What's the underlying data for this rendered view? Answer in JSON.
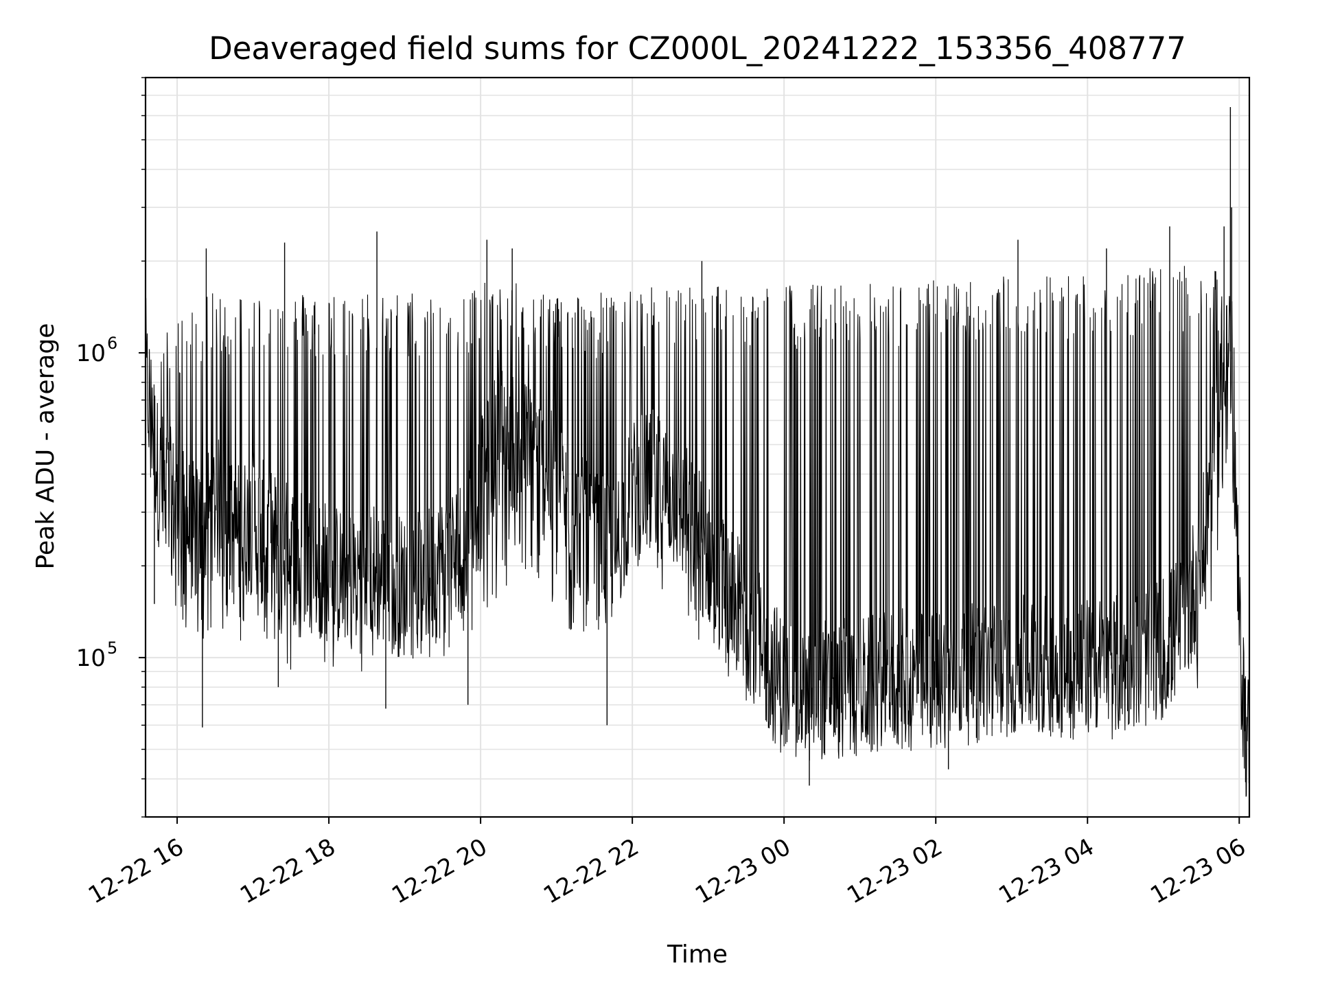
{
  "chart_data": {
    "type": "line",
    "title": "Deaveraged field sums for CZ000L_20241222_153356_408777",
    "xlabel": "Time",
    "ylabel": "Peak ADU - average",
    "x_type": "datetime",
    "xlim": [
      "2024-12-22T15:35",
      "2024-12-23T06:08"
    ],
    "ylim": [
      30000,
      8000000
    ],
    "y_scale": "log",
    "grid": true,
    "legend": "none",
    "line_color": "#000000",
    "x_ticks": [
      {
        "value": "2024-12-22T16:00",
        "label": "12-22 16"
      },
      {
        "value": "2024-12-22T18:00",
        "label": "12-22 18"
      },
      {
        "value": "2024-12-22T20:00",
        "label": "12-22 20"
      },
      {
        "value": "2024-12-22T22:00",
        "label": "12-22 22"
      },
      {
        "value": "2024-12-23T00:00",
        "label": "12-23 00"
      },
      {
        "value": "2024-12-23T02:00",
        "label": "12-23 02"
      },
      {
        "value": "2024-12-23T04:00",
        "label": "12-23 04"
      },
      {
        "value": "2024-12-23T06:00",
        "label": "12-23 06"
      }
    ],
    "y_ticks": [
      {
        "value": 100000,
        "base": "10",
        "exp": "5"
      },
      {
        "value": 1000000,
        "base": "10",
        "exp": "6"
      }
    ],
    "series": [
      {
        "points": [
          [
            "2024-12-22T15:35",
            900000
          ],
          [
            "2024-12-22T15:45",
            400000
          ],
          [
            "2024-12-22T16:00",
            300000
          ],
          [
            "2024-12-22T16:15",
            250000
          ],
          [
            "2024-12-22T16:30",
            320000
          ],
          [
            "2024-12-22T16:45",
            250000
          ],
          [
            "2024-12-22T17:00",
            280000
          ],
          [
            "2024-12-22T17:15",
            240000
          ],
          [
            "2024-12-22T17:30",
            220000
          ],
          [
            "2024-12-22T17:45",
            210000
          ],
          [
            "2024-12-22T18:00",
            190000
          ],
          [
            "2024-12-22T18:15",
            180000
          ],
          [
            "2024-12-22T18:30",
            200000
          ],
          [
            "2024-12-22T18:45",
            180000
          ],
          [
            "2024-12-22T19:00",
            170000
          ],
          [
            "2024-12-22T19:15",
            180000
          ],
          [
            "2024-12-22T19:30",
            200000
          ],
          [
            "2024-12-22T19:45",
            230000
          ],
          [
            "2024-12-22T20:00",
            350000
          ],
          [
            "2024-12-22T20:15",
            550000
          ],
          [
            "2024-12-22T20:30",
            500000
          ],
          [
            "2024-12-22T20:45",
            450000
          ],
          [
            "2024-12-22T21:00",
            350000
          ],
          [
            "2024-12-22T21:15",
            280000
          ],
          [
            "2024-12-22T21:30",
            240000
          ],
          [
            "2024-12-22T21:45",
            220000
          ],
          [
            "2024-12-22T22:00",
            350000
          ],
          [
            "2024-12-22T22:15",
            380000
          ],
          [
            "2024-12-22T22:30",
            350000
          ],
          [
            "2024-12-22T22:45",
            280000
          ],
          [
            "2024-12-22T23:00",
            220000
          ],
          [
            "2024-12-22T23:15",
            160000
          ],
          [
            "2024-12-22T23:30",
            140000
          ],
          [
            "2024-12-22T23:45",
            100000
          ],
          [
            "2024-12-23T00:00",
            80000
          ],
          [
            "2024-12-23T00:15",
            75000
          ],
          [
            "2024-12-23T00:30",
            80000
          ],
          [
            "2024-12-23T00:45",
            78000
          ],
          [
            "2024-12-23T01:00",
            80000
          ],
          [
            "2024-12-23T01:15",
            80000
          ],
          [
            "2024-12-23T01:30",
            85000
          ],
          [
            "2024-12-23T01:45",
            82000
          ],
          [
            "2024-12-23T02:00",
            85000
          ],
          [
            "2024-12-23T02:15",
            90000
          ],
          [
            "2024-12-23T02:30",
            88000
          ],
          [
            "2024-12-23T02:45",
            90000
          ],
          [
            "2024-12-23T03:00",
            95000
          ],
          [
            "2024-12-23T03:15",
            92000
          ],
          [
            "2024-12-23T03:30",
            95000
          ],
          [
            "2024-12-23T03:45",
            90000
          ],
          [
            "2024-12-23T04:00",
            95000
          ],
          [
            "2024-12-23T04:15",
            92000
          ],
          [
            "2024-12-23T04:30",
            95000
          ],
          [
            "2024-12-23T04:45",
            100000
          ],
          [
            "2024-12-23T05:00",
            110000
          ],
          [
            "2024-12-23T05:15",
            130000
          ],
          [
            "2024-12-23T05:30",
            200000
          ],
          [
            "2024-12-23T05:40",
            500000
          ],
          [
            "2024-12-23T05:50",
            1200000
          ],
          [
            "2024-12-23T05:55",
            900000
          ],
          [
            "2024-12-23T06:00",
            120000
          ],
          [
            "2024-12-23T06:05",
            60000
          ],
          [
            "2024-12-23T06:08",
            50000
          ]
        ]
      }
    ],
    "envelope": [
      [
        "2024-12-22T15:35",
        1000000,
        400000
      ],
      [
        "2024-12-22T16:00",
        1300000,
        120000
      ],
      [
        "2024-12-22T16:30",
        1600000,
        110000
      ],
      [
        "2024-12-22T17:00",
        1600000,
        110000
      ],
      [
        "2024-12-22T17:30",
        1600000,
        90000
      ],
      [
        "2024-12-22T18:00",
        1600000,
        90000
      ],
      [
        "2024-12-22T18:30",
        1600000,
        90000
      ],
      [
        "2024-12-22T19:00",
        1600000,
        100000
      ],
      [
        "2024-12-22T19:30",
        1600000,
        90000
      ],
      [
        "2024-12-22T20:00",
        1700000,
        130000
      ],
      [
        "2024-12-22T20:30",
        1700000,
        180000
      ],
      [
        "2024-12-22T21:00",
        1600000,
        130000
      ],
      [
        "2024-12-22T21:30",
        1600000,
        100000
      ],
      [
        "2024-12-22T22:00",
        1600000,
        200000
      ],
      [
        "2024-12-22T22:30",
        1700000,
        140000
      ],
      [
        "2024-12-22T23:00",
        1700000,
        90000
      ],
      [
        "2024-12-22T23:30",
        1700000,
        70000
      ],
      [
        "2024-12-23T00:00",
        1700000,
        50000
      ],
      [
        "2024-12-23T00:30",
        1700000,
        45000
      ],
      [
        "2024-12-23T01:00",
        1700000,
        50000
      ],
      [
        "2024-12-23T01:30",
        1700000,
        52000
      ],
      [
        "2024-12-23T02:00",
        1750000,
        55000
      ],
      [
        "2024-12-23T02:30",
        1800000,
        55000
      ],
      [
        "2024-12-23T03:00",
        1800000,
        56000
      ],
      [
        "2024-12-23T03:30",
        1850000,
        58000
      ],
      [
        "2024-12-23T04:00",
        1850000,
        58000
      ],
      [
        "2024-12-23T04:30",
        1900000,
        58000
      ],
      [
        "2024-12-23T05:00",
        1900000,
        60000
      ],
      [
        "2024-12-23T05:30",
        1950000,
        80000
      ],
      [
        "2024-12-23T05:50",
        1800000,
        400000
      ],
      [
        "2024-12-23T06:00",
        150000,
        60000
      ],
      [
        "2024-12-23T06:08",
        70000,
        45000
      ]
    ],
    "spikes": [
      [
        "2024-12-22T16:23",
        2200000
      ],
      [
        "2024-12-22T17:25",
        2300000
      ],
      [
        "2024-12-22T18:38",
        2500000
      ],
      [
        "2024-12-22T20:05",
        2350000
      ],
      [
        "2024-12-22T20:25",
        2200000
      ],
      [
        "2024-12-22T22:55",
        2000000
      ],
      [
        "2024-12-23T03:05",
        2350000
      ],
      [
        "2024-12-23T04:15",
        2200000
      ],
      [
        "2024-12-23T05:05",
        2600000
      ],
      [
        "2024-12-23T05:48",
        2600000
      ],
      [
        "2024-12-23T05:53",
        6400000
      ],
      [
        "2024-12-23T05:54",
        3000000
      ]
    ],
    "dips": [
      [
        "2024-12-22T15:42",
        150000
      ],
      [
        "2024-12-22T16:20",
        59000
      ],
      [
        "2024-12-22T17:20",
        80000
      ],
      [
        "2024-12-22T18:45",
        68000
      ],
      [
        "2024-12-22T19:50",
        70000
      ],
      [
        "2024-12-22T21:40",
        60000
      ],
      [
        "2024-12-23T00:20",
        38000
      ],
      [
        "2024-12-23T02:10",
        43000
      ],
      [
        "2024-12-23T06:05",
        39000
      ]
    ]
  }
}
